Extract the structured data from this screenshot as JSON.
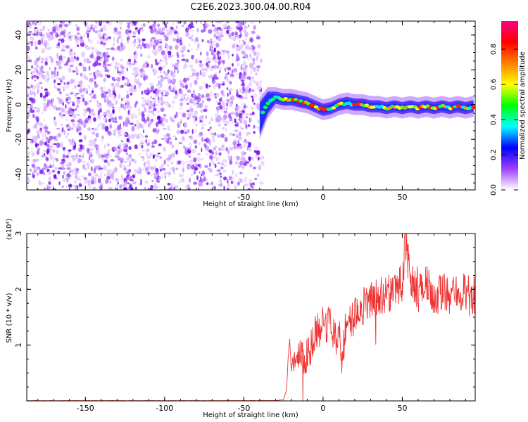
{
  "title": "C2E6.2023.300.04.00.R04",
  "colors": {
    "line": "#ee3333",
    "axis": "#000000",
    "cb_stops": [
      "#ffffff",
      "#a040ff",
      "#0000ff",
      "#00ffff",
      "#00ff00",
      "#ffff00",
      "#ff8000",
      "#ff0000",
      "#ff0080"
    ]
  },
  "chart_data": [
    {
      "type": "heatmap",
      "title": "C2E6.2023.300.04.00.R04",
      "xlabel": "Height of straight line (km)",
      "ylabel": "Frequency (Hz)",
      "xlim": [
        -187,
        96
      ],
      "ylim": [
        -49,
        48
      ],
      "xticks": [
        -150,
        -100,
        -50,
        0,
        50
      ],
      "yticks": [
        -40,
        -20,
        0,
        20,
        40
      ],
      "colorbar": {
        "label": "Normalized spectral amplitude",
        "range": [
          0.0,
          0.96
        ],
        "ticks": [
          0.0,
          0.2,
          0.4,
          0.6,
          0.8
        ]
      },
      "noise_region_km": [
        -187,
        -38
      ],
      "signal_track": {
        "x": [
          -40,
          -35,
          -30,
          -25,
          -20,
          -15,
          -10,
          -5,
          0,
          5,
          10,
          15,
          20,
          25,
          30,
          35,
          40,
          45,
          50,
          55,
          60,
          65,
          70,
          75,
          80,
          85,
          90,
          95
        ],
        "y": [
          -8,
          1,
          4,
          3,
          3,
          2,
          1,
          -1,
          -3,
          -2,
          0,
          1,
          0,
          0,
          -1,
          -1,
          -2,
          -1,
          -2,
          -1,
          -2,
          -1,
          -2,
          -1,
          -2,
          -1,
          -2,
          -1
        ]
      }
    },
    {
      "type": "line",
      "xlabel": "Height of straight line (km)",
      "ylabel": "SNR (10 * v/v)",
      "y_multiplier": "(x10⁴)",
      "xlim": [
        -187,
        96
      ],
      "ylim": [
        0,
        3
      ],
      "xticks": [
        -150,
        -100,
        -50,
        0,
        50
      ],
      "yticks": [
        1,
        2,
        3
      ],
      "series": [
        {
          "name": "SNR",
          "x": [
            -187,
            -100,
            -50,
            -30,
            -25,
            -23,
            -22,
            -21,
            -20,
            -18,
            -15,
            -10,
            -5,
            0,
            5,
            10,
            12,
            15,
            20,
            25,
            30,
            35,
            40,
            45,
            50,
            52,
            55,
            60,
            65,
            70,
            75,
            80,
            85,
            90,
            96
          ],
          "y": [
            0.002,
            0.002,
            0.002,
            0.004,
            0.02,
            0.2,
            0.8,
            1.1,
            0.6,
            0.7,
            0.9,
            0.8,
            1.2,
            1.4,
            1.3,
            1.1,
            0.7,
            1.5,
            1.5,
            1.7,
            1.8,
            1.9,
            1.9,
            2.0,
            2.1,
            2.9,
            2.2,
            1.9,
            2.2,
            1.8,
            2.0,
            1.9,
            2.0,
            1.9,
            1.9
          ]
        }
      ]
    }
  ]
}
